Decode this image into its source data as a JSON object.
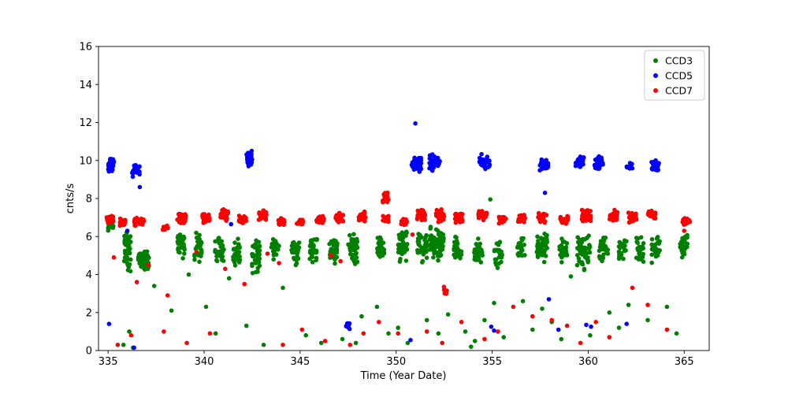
{
  "chart_data": {
    "type": "scatter",
    "title": "",
    "xlabel": "Time (Year Date)",
    "ylabel": "cnts/s",
    "xlim": [
      334.5,
      366.3
    ],
    "ylim": [
      0,
      16
    ],
    "xticks": [
      335,
      340,
      345,
      350,
      355,
      360,
      365
    ],
    "yticks": [
      0,
      2,
      4,
      6,
      8,
      10,
      12,
      14,
      16
    ],
    "grid": false,
    "legend": {
      "position": "upper right",
      "entries": [
        "CCD3",
        "CCD5",
        "CCD7"
      ]
    },
    "marker": {
      "shape": "circle",
      "radius_px": 2.8
    },
    "series": [
      {
        "name": "CCD3",
        "color": "#008000",
        "clusters": [
          [
            335.15,
            6.5,
            0.3,
            0.5,
            10
          ],
          [
            336.0,
            5.2,
            0.35,
            2.4,
            45
          ],
          [
            336.85,
            4.75,
            0.55,
            1.2,
            55
          ],
          [
            338.8,
            5.6,
            0.4,
            1.7,
            30
          ],
          [
            339.7,
            5.4,
            0.4,
            1.6,
            30
          ],
          [
            340.8,
            5.3,
            0.45,
            1.8,
            35
          ],
          [
            341.7,
            5.2,
            0.4,
            1.6,
            28
          ],
          [
            342.7,
            5.0,
            0.45,
            2.0,
            35
          ],
          [
            343.7,
            5.3,
            0.4,
            1.6,
            28
          ],
          [
            344.75,
            5.2,
            0.4,
            1.6,
            30
          ],
          [
            345.7,
            5.3,
            0.4,
            1.5,
            28
          ],
          [
            346.75,
            5.2,
            0.45,
            1.7,
            32
          ],
          [
            347.75,
            5.4,
            0.5,
            2.1,
            42
          ],
          [
            349.2,
            5.3,
            0.4,
            1.5,
            28
          ],
          [
            350.35,
            5.5,
            0.5,
            1.9,
            48
          ],
          [
            351.35,
            5.4,
            0.5,
            1.9,
            40
          ],
          [
            352.1,
            5.6,
            0.75,
            2.1,
            75
          ],
          [
            353.2,
            5.3,
            0.4,
            1.6,
            28
          ],
          [
            354.3,
            5.2,
            0.5,
            1.8,
            34
          ],
          [
            355.3,
            5.1,
            0.45,
            1.8,
            30
          ],
          [
            356.5,
            5.3,
            0.4,
            1.5,
            24
          ],
          [
            357.6,
            5.3,
            0.55,
            1.9,
            46
          ],
          [
            358.7,
            5.2,
            0.4,
            1.6,
            28
          ],
          [
            359.75,
            5.2,
            0.7,
            2.3,
            62
          ],
          [
            360.8,
            5.4,
            0.45,
            1.7,
            30
          ],
          [
            361.8,
            5.3,
            0.4,
            1.5,
            24
          ],
          [
            362.7,
            5.4,
            0.4,
            1.5,
            24
          ],
          [
            363.5,
            5.3,
            0.45,
            1.6,
            30
          ],
          [
            365.0,
            5.5,
            0.45,
            1.5,
            30
          ]
        ],
        "points": [
          [
            335.8,
            0.3
          ],
          [
            336.1,
            1.0
          ],
          [
            336.3,
            0.15
          ],
          [
            337.4,
            3.4
          ],
          [
            338.3,
            2.1
          ],
          [
            339.2,
            4.0
          ],
          [
            340.1,
            2.3
          ],
          [
            340.6,
            0.9
          ],
          [
            341.3,
            3.8
          ],
          [
            342.2,
            1.3
          ],
          [
            343.1,
            0.3
          ],
          [
            344.1,
            3.3
          ],
          [
            345.3,
            0.8
          ],
          [
            346.1,
            0.4
          ],
          [
            347.2,
            0.6
          ],
          [
            348.2,
            1.8
          ],
          [
            349.0,
            2.3
          ],
          [
            349.6,
            0.9
          ],
          [
            350.1,
            1.2
          ],
          [
            350.6,
            0.4
          ],
          [
            351.6,
            1.6
          ],
          [
            352.2,
            0.9
          ],
          [
            352.7,
            1.9
          ],
          [
            353.6,
            1.0
          ],
          [
            353.9,
            0.2
          ],
          [
            354.1,
            0.5
          ],
          [
            354.6,
            1.6
          ],
          [
            354.9,
            7.95
          ],
          [
            355.1,
            2.5
          ],
          [
            355.6,
            0.7
          ],
          [
            356.6,
            2.6
          ],
          [
            357.1,
            1.1
          ],
          [
            357.6,
            2.2
          ],
          [
            358.1,
            1.5
          ],
          [
            358.6,
            0.6
          ],
          [
            359.1,
            3.9
          ],
          [
            360.1,
            0.8
          ],
          [
            361.1,
            2.0
          ],
          [
            361.6,
            1.2
          ],
          [
            362.1,
            2.4
          ],
          [
            363.1,
            1.6
          ],
          [
            364.1,
            2.3
          ],
          [
            364.6,
            0.9
          ],
          [
            347.9,
            0.4
          ]
        ]
      },
      {
        "name": "CCD5",
        "color": "#0000ff",
        "clusters": [
          [
            335.15,
            9.8,
            0.3,
            0.85,
            26
          ],
          [
            336.45,
            9.45,
            0.4,
            0.65,
            26
          ],
          [
            342.35,
            10.1,
            0.3,
            0.85,
            30
          ],
          [
            351.05,
            9.85,
            0.5,
            0.95,
            36
          ],
          [
            352.0,
            9.9,
            0.55,
            1.0,
            36
          ],
          [
            354.6,
            9.9,
            0.55,
            0.95,
            36
          ],
          [
            357.7,
            9.75,
            0.45,
            0.75,
            30
          ],
          [
            359.55,
            9.85,
            0.45,
            0.75,
            30
          ],
          [
            360.55,
            9.9,
            0.45,
            0.75,
            30
          ],
          [
            362.15,
            9.7,
            0.3,
            0.55,
            18
          ],
          [
            363.5,
            9.7,
            0.4,
            0.65,
            24
          ],
          [
            347.5,
            1.3,
            0.3,
            0.45,
            9
          ]
        ],
        "points": [
          [
            351.0,
            11.95
          ],
          [
            336.65,
            8.6
          ],
          [
            357.75,
            8.3
          ],
          [
            335.05,
            1.4
          ],
          [
            336.0,
            6.3
          ],
          [
            341.4,
            6.65
          ],
          [
            350.75,
            0.55
          ],
          [
            354.95,
            1.25
          ],
          [
            355.1,
            1.05
          ],
          [
            357.95,
            2.7
          ],
          [
            359.9,
            1.35
          ],
          [
            360.15,
            1.25
          ],
          [
            362.0,
            1.4
          ],
          [
            358.45,
            1.1
          ],
          [
            336.35,
            0.15
          ]
        ]
      },
      {
        "name": "CCD7",
        "color": "#ff0000",
        "clusters": [
          [
            335.1,
            6.9,
            0.35,
            0.5,
            30
          ],
          [
            335.75,
            6.75,
            0.3,
            0.4,
            20
          ],
          [
            336.6,
            6.8,
            0.5,
            0.5,
            35
          ],
          [
            338.0,
            6.45,
            0.3,
            0.3,
            12
          ],
          [
            338.85,
            6.95,
            0.5,
            0.6,
            35
          ],
          [
            340.1,
            7.0,
            0.4,
            0.6,
            30
          ],
          [
            341.05,
            7.15,
            0.4,
            0.7,
            35
          ],
          [
            342.0,
            6.9,
            0.4,
            0.5,
            25
          ],
          [
            343.05,
            7.1,
            0.4,
            0.6,
            30
          ],
          [
            344.0,
            6.8,
            0.35,
            0.4,
            20
          ],
          [
            345.0,
            6.75,
            0.35,
            0.4,
            20
          ],
          [
            346.05,
            6.9,
            0.4,
            0.5,
            25
          ],
          [
            347.05,
            7.0,
            0.4,
            0.6,
            30
          ],
          [
            348.25,
            7.05,
            0.4,
            0.6,
            30
          ],
          [
            349.45,
            8.0,
            0.3,
            0.7,
            25
          ],
          [
            349.45,
            6.9,
            0.3,
            0.5,
            15
          ],
          [
            350.4,
            6.75,
            0.3,
            0.4,
            20
          ],
          [
            351.3,
            7.1,
            0.45,
            0.7,
            35
          ],
          [
            352.3,
            7.1,
            0.45,
            0.7,
            35
          ],
          [
            353.25,
            7.0,
            0.4,
            0.6,
            30
          ],
          [
            354.5,
            7.1,
            0.45,
            0.6,
            35
          ],
          [
            355.55,
            6.9,
            0.4,
            0.5,
            25
          ],
          [
            356.55,
            6.95,
            0.4,
            0.5,
            25
          ],
          [
            357.6,
            7.0,
            0.45,
            0.6,
            30
          ],
          [
            358.75,
            6.85,
            0.4,
            0.5,
            25
          ],
          [
            359.9,
            7.1,
            0.5,
            0.7,
            40
          ],
          [
            361.3,
            7.1,
            0.45,
            0.6,
            30
          ],
          [
            362.3,
            7.0,
            0.45,
            0.6,
            30
          ],
          [
            363.3,
            7.15,
            0.4,
            0.5,
            30
          ],
          [
            365.1,
            6.8,
            0.4,
            0.5,
            25
          ],
          [
            352.55,
            3.15,
            0.2,
            0.5,
            8
          ]
        ],
        "points": [
          [
            335.3,
            4.9
          ],
          [
            335.5,
            0.3
          ],
          [
            336.2,
            0.8
          ],
          [
            336.5,
            3.6
          ],
          [
            337.1,
            4.5
          ],
          [
            337.9,
            1.0
          ],
          [
            338.1,
            2.9
          ],
          [
            339.1,
            0.4
          ],
          [
            339.6,
            5.2
          ],
          [
            340.3,
            0.9
          ],
          [
            341.1,
            4.3
          ],
          [
            342.1,
            3.5
          ],
          [
            343.3,
            5.1
          ],
          [
            343.9,
            4.6
          ],
          [
            344.1,
            0.3
          ],
          [
            345.1,
            1.1
          ],
          [
            346.3,
            0.5
          ],
          [
            346.6,
            5.0
          ],
          [
            347.1,
            4.7
          ],
          [
            347.6,
            0.3
          ],
          [
            348.3,
            0.9
          ],
          [
            349.1,
            1.5
          ],
          [
            350.1,
            0.9
          ],
          [
            350.85,
            6.1
          ],
          [
            351.6,
            1.0
          ],
          [
            352.4,
            0.4
          ],
          [
            353.4,
            1.5
          ],
          [
            354.6,
            0.6
          ],
          [
            355.3,
            1.0
          ],
          [
            356.1,
            2.3
          ],
          [
            357.1,
            1.8
          ],
          [
            358.1,
            1.6
          ],
          [
            358.9,
            1.3
          ],
          [
            359.6,
            0.4
          ],
          [
            360.4,
            1.5
          ],
          [
            361.1,
            0.7
          ],
          [
            362.3,
            3.3
          ],
          [
            363.1,
            2.4
          ],
          [
            364.1,
            1.1
          ],
          [
            365.0,
            6.3
          ]
        ]
      }
    ]
  }
}
